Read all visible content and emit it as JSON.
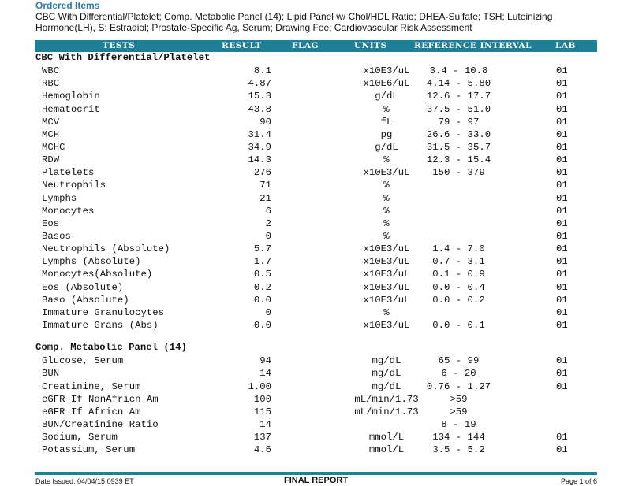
{
  "ordered": {
    "title": "Ordered Items",
    "list": "CBC With Differential/Platelet; Comp. Metabolic Panel (14); Lipid Panel w/ Chol/HDL Ratio; DHEA-Sulfate; TSH; Luteinizing Hormone(LH), S; Estradiol; Prostate-Specific Ag, Serum; Drawing Fee; Cardiovascular Risk Assessment"
  },
  "table_header": {
    "tests": "TESTS",
    "result": "RESULT",
    "flag": "FLAG",
    "units": "UNITS",
    "reference": "REFERENCE INTERVAL",
    "lab": "LAB"
  },
  "sections": [
    {
      "title": "CBC With Differential/Platelet",
      "rows": [
        {
          "name": "WBC",
          "result": "8.1",
          "units": "x10E3/uL",
          "ref": "3.4 - 10.8",
          "lab": "01"
        },
        {
          "name": "RBC",
          "result": "4.87",
          "units": "x10E6/uL",
          "ref": "4.14 - 5.80",
          "lab": "01"
        },
        {
          "name": "Hemoglobin",
          "result": "15.3",
          "units": "g/dL",
          "ref": "12.6 - 17.7",
          "lab": "01"
        },
        {
          "name": "Hematocrit",
          "result": "43.8",
          "units": "%",
          "ref": "37.5 - 51.0",
          "lab": "01"
        },
        {
          "name": "MCV",
          "result": "90",
          "units": "fL",
          "ref": "79 - 97",
          "lab": "01"
        },
        {
          "name": "MCH",
          "result": "31.4",
          "units": "pg",
          "ref": "26.6 - 33.0",
          "lab": "01"
        },
        {
          "name": "MCHC",
          "result": "34.9",
          "units": "g/dL",
          "ref": "31.5 - 35.7",
          "lab": "01"
        },
        {
          "name": "RDW",
          "result": "14.3",
          "units": "%",
          "ref": "12.3 - 15.4",
          "lab": "01"
        },
        {
          "name": "Platelets",
          "result": "276",
          "units": "x10E3/uL",
          "ref": "150 - 379",
          "lab": "01"
        },
        {
          "name": "Neutrophils",
          "result": "71",
          "units": "%",
          "ref": "",
          "lab": "01"
        },
        {
          "name": "Lymphs",
          "result": "21",
          "units": "%",
          "ref": "",
          "lab": "01"
        },
        {
          "name": "Monocytes",
          "result": "6",
          "units": "%",
          "ref": "",
          "lab": "01"
        },
        {
          "name": "Eos",
          "result": "2",
          "units": "%",
          "ref": "",
          "lab": "01"
        },
        {
          "name": "Basos",
          "result": "0",
          "units": "%",
          "ref": "",
          "lab": "01"
        },
        {
          "name": "Neutrophils (Absolute)",
          "result": "5.7",
          "units": "x10E3/uL",
          "ref": "1.4 - 7.0",
          "lab": "01"
        },
        {
          "name": "Lymphs (Absolute)",
          "result": "1.7",
          "units": "x10E3/uL",
          "ref": "0.7 - 3.1",
          "lab": "01"
        },
        {
          "name": "Monocytes(Absolute)",
          "result": "0.5",
          "units": "x10E3/uL",
          "ref": "0.1 - 0.9",
          "lab": "01"
        },
        {
          "name": "Eos (Absolute)",
          "result": "0.2",
          "units": "x10E3/uL",
          "ref": "0.0 - 0.4",
          "lab": "01"
        },
        {
          "name": "Baso (Absolute)",
          "result": "0.0",
          "units": "x10E3/uL",
          "ref": "0.0 - 0.2",
          "lab": "01"
        },
        {
          "name": "Immature Granulocytes",
          "result": "0",
          "units": "%",
          "ref": "",
          "lab": "01"
        },
        {
          "name": "Immature Grans (Abs)",
          "result": "0.0",
          "units": "x10E3/uL",
          "ref": "0.0 - 0.1",
          "lab": "01"
        }
      ]
    },
    {
      "title": "Comp. Metabolic Panel (14)",
      "rows": [
        {
          "name": "Glucose, Serum",
          "result": "94",
          "units": "mg/dL",
          "ref": "65 - 99",
          "lab": "01"
        },
        {
          "name": "BUN",
          "result": "14",
          "units": "mg/dL",
          "ref": "6 - 20",
          "lab": "01"
        },
        {
          "name": "Creatinine, Serum",
          "result": "1.00",
          "units": "mg/dL",
          "ref": "0.76 - 1.27",
          "lab": "01"
        },
        {
          "name": "eGFR If NonAfricn Am",
          "result": "100",
          "units": "mL/min/1.73",
          "ref": ">59",
          "lab": ""
        },
        {
          "name": "eGFR If Africn Am",
          "result": "115",
          "units": "mL/min/1.73",
          "ref": ">59",
          "lab": ""
        },
        {
          "name": "BUN/Creatinine Ratio",
          "result": "14",
          "units": "",
          "ref": "8 - 19",
          "lab": ""
        },
        {
          "name": "Sodium, Serum",
          "result": "137",
          "units": "mmol/L",
          "ref": "134 - 144",
          "lab": "01"
        },
        {
          "name": "Potassium, Serum",
          "result": "4.6",
          "units": "mmol/L",
          "ref": "3.5 - 5.2",
          "lab": "01"
        }
      ]
    }
  ],
  "footer": {
    "date_issued": "Date Issued: 04/04/15 0939 ET",
    "status": "FINAL REPORT",
    "page": "Page 1 of 6"
  },
  "colors": {
    "header_bar": "#1f7f96",
    "ordered_title": "#2b7ab0"
  }
}
